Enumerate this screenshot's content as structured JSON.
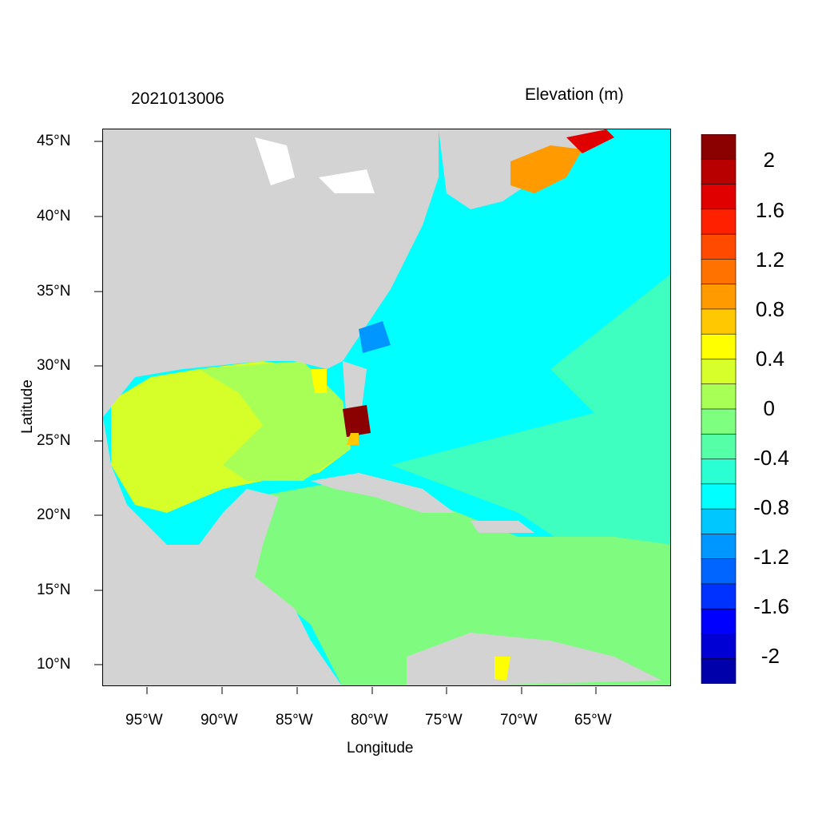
{
  "header": {
    "timestamp": "2021013006",
    "variable": "Elevation (m)"
  },
  "axes": {
    "xlabel": "Longitude",
    "ylabel": "Latitude",
    "lon_ticks": [
      "95°W",
      "90°W",
      "85°W",
      "80°W",
      "75°W",
      "70°W",
      "65°W"
    ],
    "lat_ticks": [
      "45°N",
      "40°N",
      "35°N",
      "30°N",
      "25°N",
      "20°N",
      "15°N",
      "10°N"
    ]
  },
  "colorbar": {
    "labels": [
      "2",
      "1.6",
      "1.2",
      "0.8",
      "0.4",
      "0",
      "-0.4",
      "-0.8",
      "-1.2",
      "-1.6",
      "-2"
    ],
    "colors": [
      "#8b0000",
      "#b80000",
      "#e00000",
      "#ff2000",
      "#ff4a00",
      "#ff7200",
      "#ff9a00",
      "#ffc800",
      "#ffff00",
      "#d7ff2a",
      "#a8ff55",
      "#7fff7f",
      "#55ffa8",
      "#2affd4",
      "#00ffff",
      "#00c8ff",
      "#0096ff",
      "#0064ff",
      "#0032ff",
      "#0000ff",
      "#0000d4",
      "#0000aa"
    ]
  },
  "map": {
    "land_color": "#d3d3d3",
    "gulf_color": "#d6ff2a",
    "atlantic_color": "#00ffff",
    "atlantic_south_color": "#3fffc0",
    "caribbean_color": "#7ffc7f"
  }
}
